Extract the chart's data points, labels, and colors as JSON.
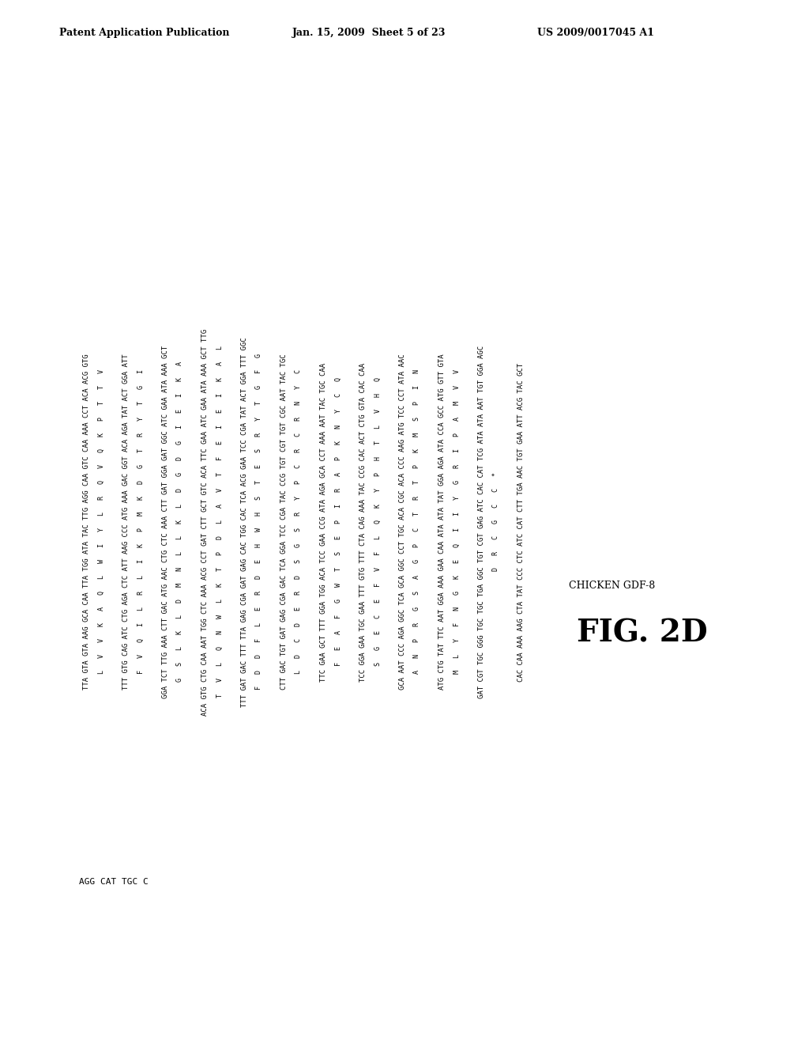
{
  "header_left": "Patent Application Publication",
  "header_mid": "Jan. 15, 2009  Sheet 5 of 23",
  "header_right": "US 2009/0017045 A1",
  "fig_label": "FIG. 2D",
  "species_label": "CHICKEN GDF-8",
  "last_line": "AGG CAT TGC C",
  "sequence_lines": [
    [
      "TTA GTA GTA AAG GCA CAA TTA TGG ATA TAC TTG AGG CAA GTC CAA AAA CCT ACA ACG GTG",
      "L   V   V   K   A   Q   L   W   I   Y   L   R   Q   V   Q   K   P   T   T   V"
    ],
    [
      "TTT GTG CAG ATC CTG AGA CTC ATT AAG CCC ATG AAA GAC GGT ACA AGA TAT ACT GGA ATT",
      "F   V   Q   I   L   R   L   I   K   P   M   K   D   G   T   R   Y   T   G   I"
    ],
    [
      "GGA TCT TTG AAA CTT GAC ATG AAC CTG CTC AAA CTT GAT GGA GAT GGC ATC GAA ATA AAA GCT",
      "G   S   L   K   L   D   M   N   L   L   K   L   D   G   D   G   I   E   I   K   A"
    ],
    [
      "ACA GTG CTG CAA AAT TGG CTC AAA ACG CCT GAT CTT GCT GTC ACA TTC GAA ATC GAA ATA AAA GCT TTG",
      "T   V   L   Q   N   W   L   K   T   P   D   L   A   V   T   F   E   I   E   I   K   A   L"
    ],
    [
      "TTT GAT GAC TIT TTA GAG CGA GAT GAG CAC TGG CAC TCA ACG GAA TCC CGA TAT ACT GGA TTT GGC",
      "F   D   D   F   L   E   R   D   E   H   W   H   S   T   E   S   R   Y   T   G   F   G"
    ],
    [
      "CTT GAC TGT GAT GAG CGA DAC TCA GGA TCC CGA TAC CCG TGT CGT TGT CGC AAT TAC TGC",
      "L   D   C   D   E   R   D   S   G   S   R   Y   P   C   R   C   R   N   Y   C"
    ],
    [
      "TTC GAA GCT TTT GGA TGG ACA TCC GAA CCG ATA AGA GCA CCT AAA AAT TAC TGC CAA",
      "F   E   A   F   G   W   T   S   E   P   I   R   A   P   K   N   Y   C   Q"
    ],
    [
      "TCC GGA GAA TGC GAA TTT GTG TIT CTA CAG AAA TAC CCG CAC ACT CTG GTA CAC CAA",
      "S   G   E   C   E   F   V   F   L   Q   K   Y   P   H   T   L   V   H   Q"
    ],
    [
      "GCA AAT CCC AGA GGC TCA GCA GGC CCT TGC ACA CGC ACA CCC AAG ATG TCC CCT ATA AAC",
      "A   N   P   R   G   S   A   G   P   C   T   R   T   P   K   M   S   P   I   N"
    ],
    [
      "ATG CTG TAT TTC AAT GGA AAA GAA CAA ATA ATA TAT GGA AGA ATA CCA GCC ATG GTT GTA",
      "M   L   Y   F   N   G   K   E   Q   I   I   Y   G   R   I   P   A   M   V   V"
    ],
    [
      "GAT CGT TGC GGG TGC TGC TGA GGC TGT CGT GAG ATC CAC CAT TCG ATA ATA AAT TGT GGA AGC",
      "D   R   C   G   C   C   *"
    ],
    [
      "CAC CAA AAA AAG CTA TAT CCC CTC ATC CAT CTT TGA AAC TGT GAA ATT ACG TAC GCT",
      ""
    ]
  ]
}
